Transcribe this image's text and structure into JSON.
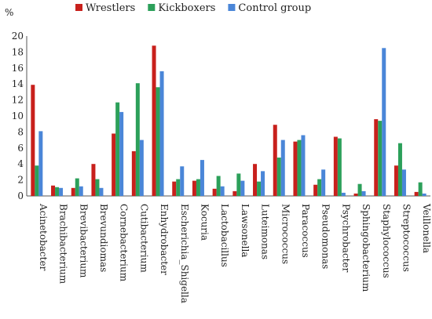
{
  "chart_data": {
    "type": "bar",
    "ylabel": "%",
    "ylim": [
      0,
      20
    ],
    "yticks": [
      0,
      2,
      4,
      6,
      8,
      10,
      12,
      14,
      16,
      18,
      20
    ],
    "grid": false,
    "legend_position": "top",
    "categories": [
      "Acinetobacter",
      "Brachibacterium",
      "Brevibacterium",
      "Brevundiomas",
      "Cornebacterium",
      "Cutibacterium",
      "Enhydrobacter",
      "Escherichia_Shigella",
      "Kocuria",
      "Lactobacillus",
      "Lawsonella",
      "Luteimonas",
      "Micrococcus",
      "Paracoccus",
      "Pseudomonas",
      "Psychrobacter",
      "Sphingobacterium",
      "Staphylococcus",
      "Streptococcus",
      "Veillonella"
    ],
    "series": [
      {
        "name": "Wrestlers",
        "color": "#c8201c",
        "values": [
          13.9,
          1.3,
          1.0,
          4.0,
          7.8,
          5.6,
          18.8,
          1.8,
          1.9,
          0.9,
          0.6,
          4.0,
          8.9,
          6.8,
          1.4,
          7.4,
          0.3,
          9.6,
          3.8,
          0.5
        ]
      },
      {
        "name": "Kickboxers",
        "color": "#2ca05a",
        "values": [
          3.8,
          1.1,
          2.2,
          2.1,
          11.7,
          14.1,
          13.6,
          2.1,
          2.1,
          2.5,
          2.8,
          1.8,
          4.8,
          7.0,
          2.1,
          7.2,
          1.5,
          9.4,
          6.6,
          1.7
        ]
      },
      {
        "name": "Control group",
        "color": "#4a86d8",
        "values": [
          8.1,
          1.0,
          1.2,
          1.0,
          10.5,
          7.0,
          15.6,
          3.7,
          4.5,
          1.2,
          1.9,
          3.1,
          7.0,
          7.6,
          3.3,
          0.4,
          0.6,
          18.5,
          3.3,
          0.3
        ]
      }
    ]
  }
}
